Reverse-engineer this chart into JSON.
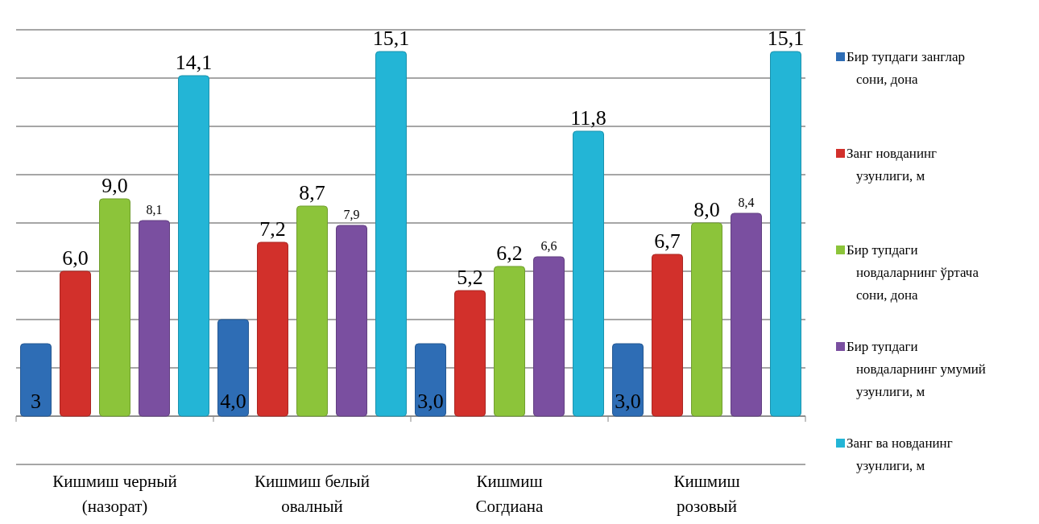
{
  "chart_data": {
    "type": "bar",
    "categories": [
      "Кишмиш черный (назорат)",
      "Кишмиш белый овалный",
      "Кишмиш Согдиана",
      "Кишмиш розовый"
    ],
    "series": [
      {
        "name": "Бир тупдаги занглар сони, дона",
        "color": "#2e6db5",
        "values": [
          3,
          4.0,
          3.0,
          3.0
        ],
        "value_labels": [
          "3",
          "4,0",
          "3,0",
          "3,0"
        ]
      },
      {
        "name": "Занг новданинг узунлиги, м",
        "color": "#d2302b",
        "values": [
          6.0,
          7.2,
          5.2,
          6.7
        ],
        "value_labels": [
          "6,0",
          "7,2",
          "5,2",
          "6,7"
        ]
      },
      {
        "name": "Бир тупдаги новдаларнинг ўртача сони, дона",
        "color": "#8cc43a",
        "values": [
          9.0,
          8.7,
          6.2,
          8.0
        ],
        "value_labels": [
          "9,0",
          "8,7",
          "6,2",
          "8,0"
        ]
      },
      {
        "name": "Бир тупдаги новдаларнинг умумий узунлиги, м",
        "color": "#7a4fa0",
        "values": [
          8.1,
          7.9,
          6.6,
          8.4
        ],
        "value_labels": [
          "8,1",
          "7,9",
          "6,6",
          "8,4"
        ]
      },
      {
        "name": "Занг ва новданинг узунлиги, м",
        "color": "#23b5d6",
        "values": [
          14.1,
          15.1,
          11.8,
          15.1
        ],
        "value_labels": [
          "14,1",
          "15,1",
          "11,8",
          "15,1"
        ]
      }
    ],
    "ylim": [
      -2,
      16
    ],
    "yticks": [
      {
        "value": -2,
        "label": null
      },
      {
        "value": 0,
        "label": null
      },
      {
        "value": 2,
        "label": null
      },
      {
        "value": 4,
        "label": null
      },
      {
        "value": 6,
        "label": null
      },
      {
        "value": 8,
        "label": null
      },
      {
        "value": 10,
        "label": null
      },
      {
        "value": 12,
        "label": null
      },
      {
        "value": 14,
        "label": null
      },
      {
        "value": 16,
        "label": null
      }
    ],
    "tick_labels": "x",
    "grid": "y",
    "legend": "right"
  }
}
